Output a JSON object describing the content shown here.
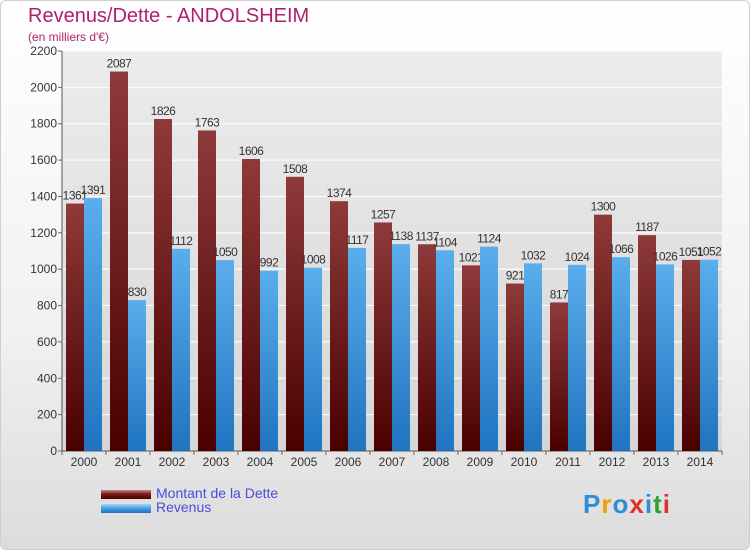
{
  "header": {
    "title": "Revenus/Dette - ANDOLSHEIM",
    "subtitle": "(en milliers d'€)"
  },
  "legend": {
    "items": [
      {
        "label": "Montant de la Dette",
        "color": "#6b1313"
      },
      {
        "label": "Revenus",
        "color": "#3a96dc"
      }
    ]
  },
  "logo": {
    "text": "Proxiti",
    "letter_colors": [
      "#2e8fd8",
      "#f0a000",
      "#2e8fd8",
      "#e03030",
      "#2e8fd8",
      "#30a030",
      "#e03030"
    ]
  },
  "chart_data": {
    "type": "bar",
    "title": "Revenus/Dette - ANDOLSHEIM",
    "subtitle": "(en milliers d'€)",
    "categories": [
      "2000",
      "2001",
      "2002",
      "2003",
      "2004",
      "2005",
      "2006",
      "2007",
      "2008",
      "2009",
      "2010",
      "2011",
      "2012",
      "2013",
      "2014"
    ],
    "series": [
      {
        "name": "Montant de la Dette",
        "color": "#6b1313",
        "values": [
          1361,
          2087,
          1826,
          1763,
          1606,
          1508,
          1374,
          1257,
          1137,
          1021,
          921,
          817,
          1300,
          1187,
          1051
        ],
        "labels": [
          "1361",
          "2087",
          "1826",
          "1763",
          "1606",
          "1508",
          "1374",
          "1257",
          "1137",
          "1021",
          "921",
          "817",
          "1300",
          "1187",
          "1051"
        ]
      },
      {
        "name": "Revenus",
        "color": "#3a96dc",
        "values": [
          1391,
          830,
          1112,
          1050,
          992,
          1008,
          1117,
          1138,
          1104,
          1124,
          1032,
          1024,
          1066,
          1026,
          1052
        ],
        "labels": [
          "1391",
          "830",
          "1112",
          "1050",
          "992",
          "1008",
          "1117",
          "1138",
          "1104",
          "1124",
          "1032",
          "1024",
          "1066",
          "1026",
          "1052"
        ]
      }
    ],
    "ylim": [
      0,
      2200
    ],
    "yticks": [
      0,
      200,
      400,
      600,
      800,
      1000,
      1200,
      1400,
      1600,
      1800,
      2000,
      2200
    ],
    "grid": true,
    "legend_position": "bottom-left"
  }
}
